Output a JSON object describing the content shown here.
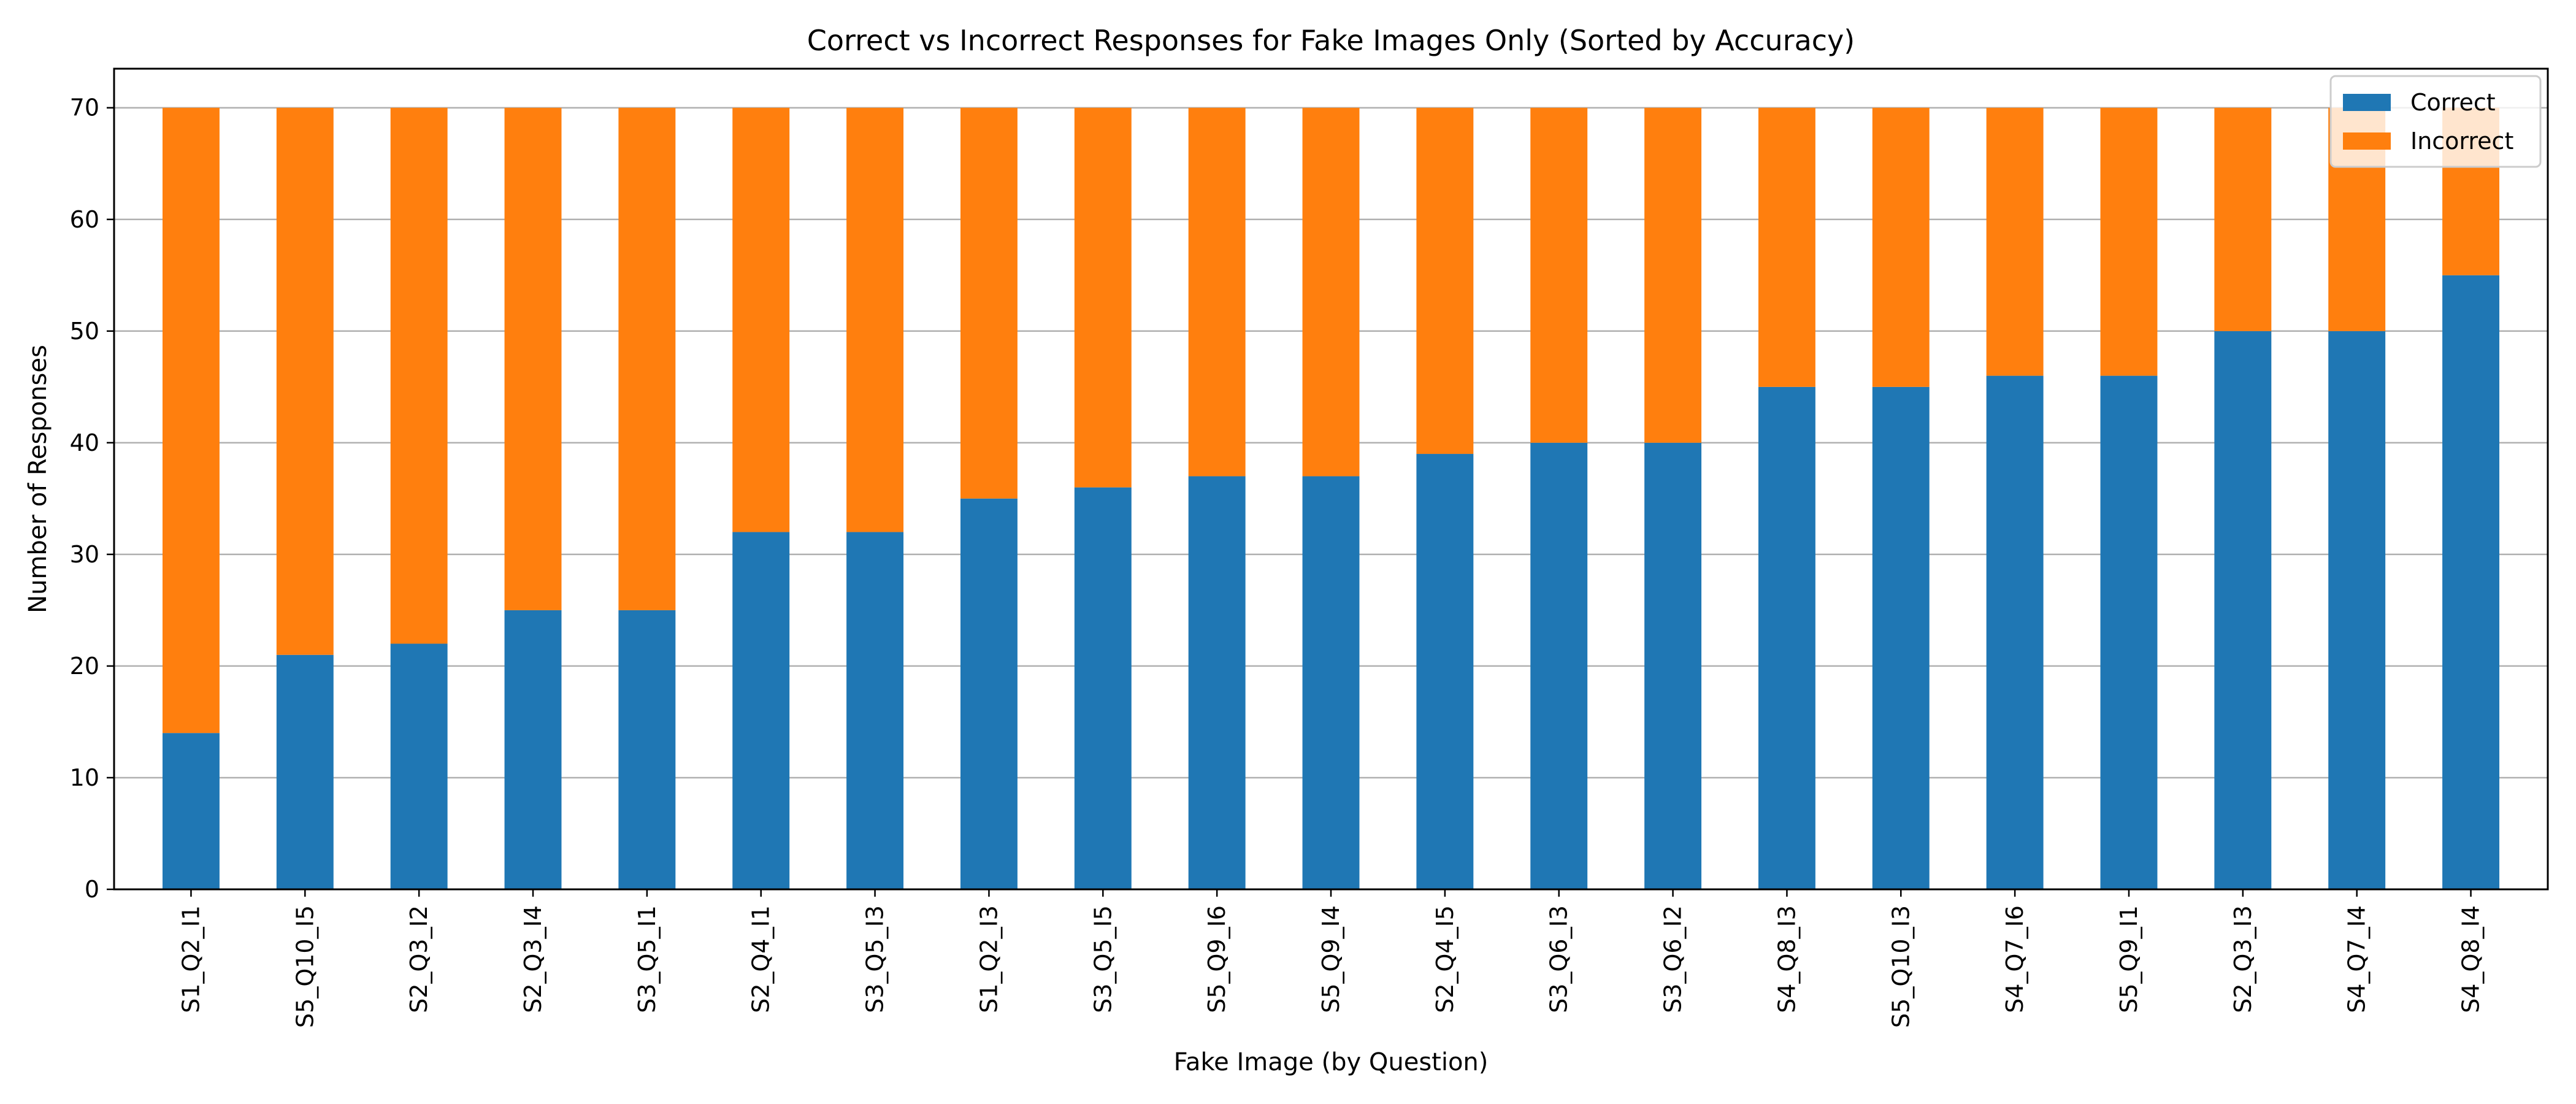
{
  "chart_data": {
    "type": "bar",
    "stacked": true,
    "title": "Correct vs Incorrect Responses for Fake Images Only (Sorted by Accuracy)",
    "xlabel": "Fake Image (by Question)",
    "ylabel": "Number of Responses",
    "ylim": [
      0,
      73.5
    ],
    "yticks": [
      0,
      10,
      20,
      30,
      40,
      50,
      60,
      70
    ],
    "grid": "horizontal",
    "legend_position": "top-right",
    "categories": [
      "S1_Q2_I1",
      "S5_Q10_I5",
      "S2_Q3_I2",
      "S2_Q3_I4",
      "S3_Q5_I1",
      "S2_Q4_I1",
      "S3_Q5_I3",
      "S1_Q2_I3",
      "S3_Q5_I5",
      "S5_Q9_I6",
      "S5_Q9_I4",
      "S2_Q4_I5",
      "S3_Q6_I3",
      "S3_Q6_I2",
      "S4_Q8_I3",
      "S5_Q10_I3",
      "S4_Q7_I6",
      "S5_Q9_I1",
      "S2_Q3_I3",
      "S4_Q7_I4",
      "S4_Q8_I4"
    ],
    "series": [
      {
        "name": "Correct",
        "color": "#1f77b4",
        "values": [
          14,
          21,
          22,
          25,
          25,
          32,
          32,
          35,
          36,
          37,
          37,
          39,
          40,
          40,
          45,
          45,
          46,
          46,
          50,
          50,
          55
        ]
      },
      {
        "name": "Incorrect",
        "color": "#ff7f0e",
        "values": [
          56,
          49,
          48,
          45,
          45,
          38,
          38,
          35,
          34,
          33,
          33,
          31,
          30,
          30,
          25,
          25,
          24,
          24,
          20,
          20,
          15
        ]
      }
    ]
  }
}
